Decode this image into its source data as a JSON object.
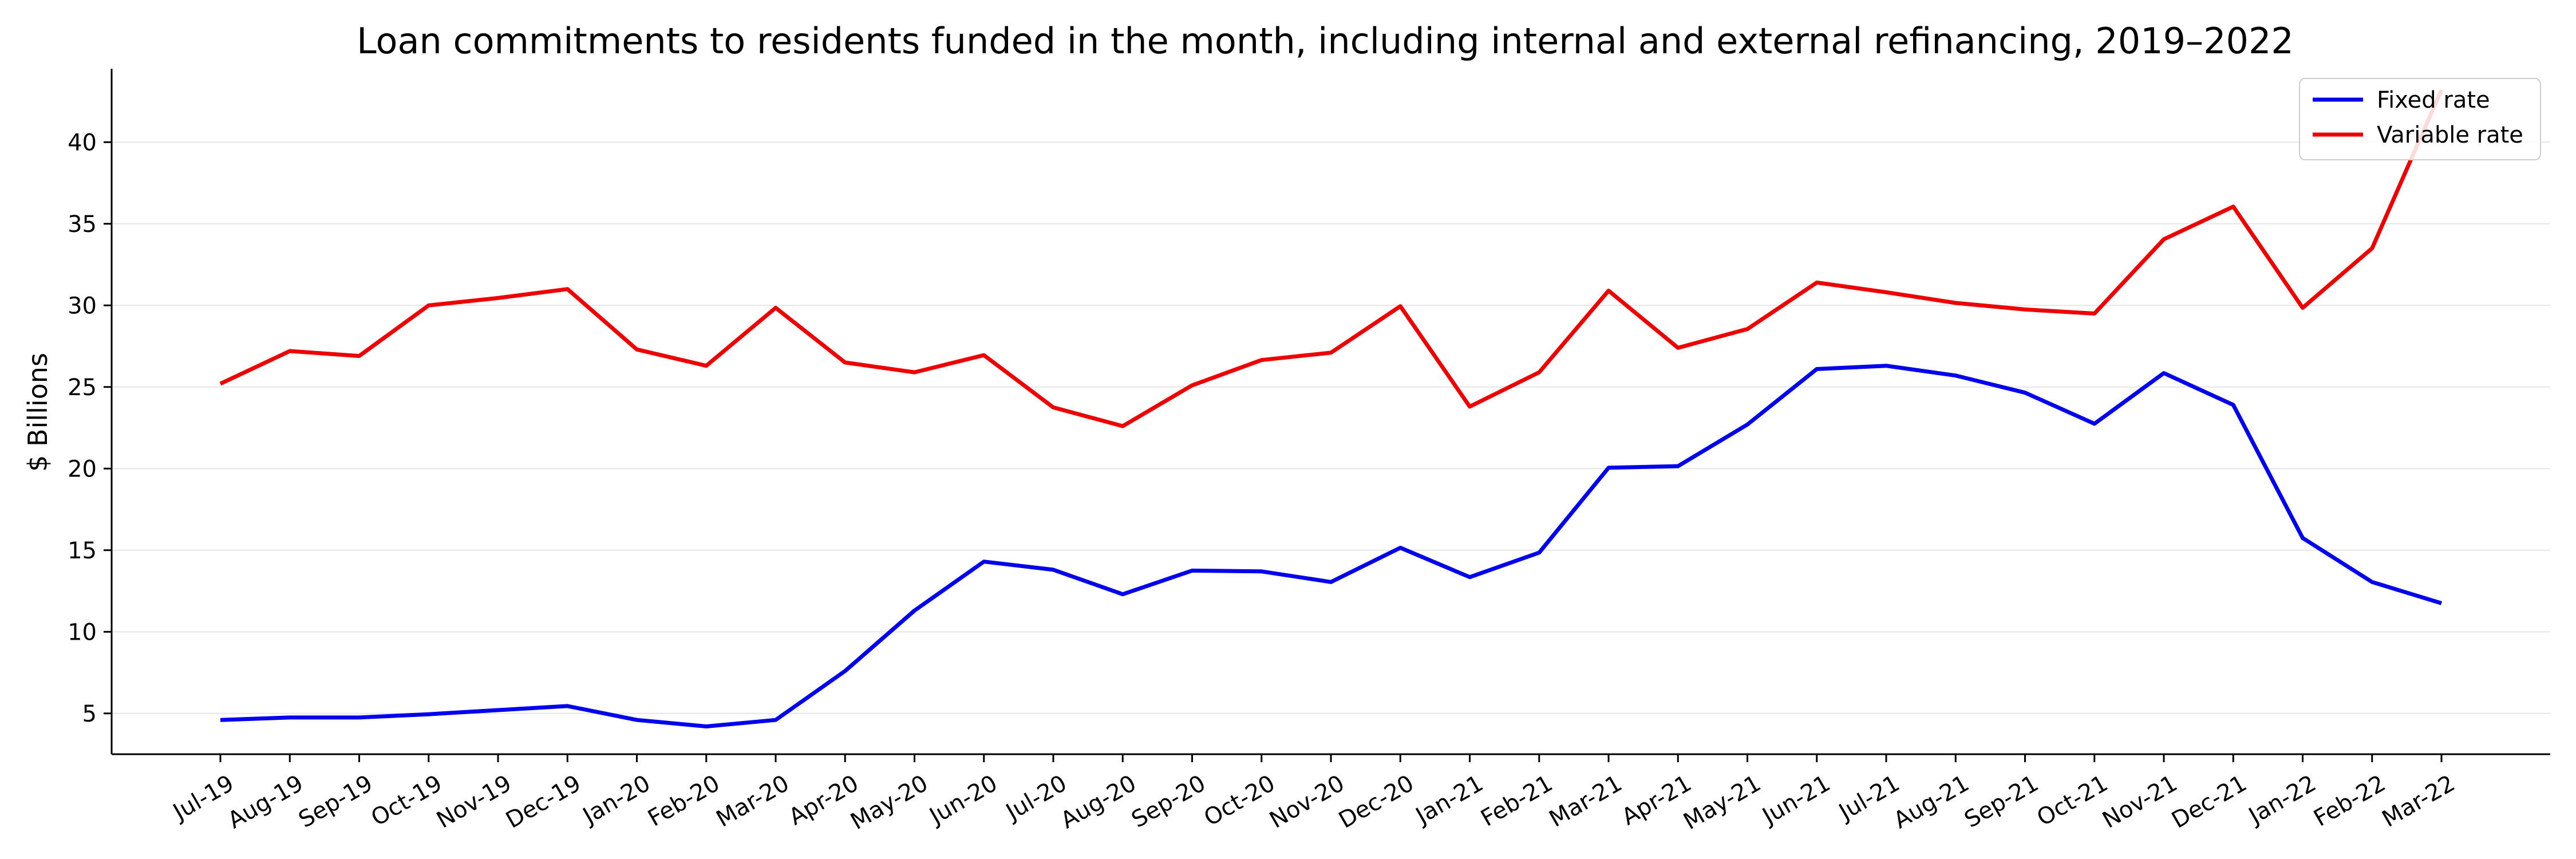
{
  "chart_data": {
    "type": "line",
    "title": "Loan commitments to residents funded in the month, including internal and external refinancing, 2019–2022",
    "xlabel": "",
    "ylabel": "$ Billions",
    "categories": [
      "Jul-19",
      "Aug-19",
      "Sep-19",
      "Oct-19",
      "Nov-19",
      "Dec-19",
      "Jan-20",
      "Feb-20",
      "Mar-20",
      "Apr-20",
      "May-20",
      "Jun-20",
      "Jul-20",
      "Aug-20",
      "Sep-20",
      "Oct-20",
      "Nov-20",
      "Dec-20",
      "Jan-21",
      "Feb-21",
      "Mar-21",
      "Apr-21",
      "May-21",
      "Jun-21",
      "Jul-21",
      "Aug-21",
      "Sep-21",
      "Oct-21",
      "Nov-21",
      "Dec-21",
      "Jan-22",
      "Feb-22",
      "Mar-22"
    ],
    "ylim": [
      2.5,
      44.5
    ],
    "yticks": [
      5,
      10,
      15,
      20,
      25,
      30,
      35,
      40
    ],
    "grid": "horizontal",
    "legend_position": "top-right",
    "series": [
      {
        "name": "Fixed rate",
        "color": "#0000ee",
        "values": [
          4.6,
          4.75,
          4.75,
          4.95,
          5.2,
          5.45,
          4.6,
          4.2,
          4.6,
          7.6,
          11.3,
          14.3,
          13.8,
          12.3,
          13.75,
          13.7,
          13.05,
          15.15,
          13.35,
          14.85,
          20.05,
          20.15,
          22.7,
          26.1,
          26.3,
          25.7,
          24.65,
          22.75,
          25.85,
          23.9,
          15.75,
          13.05,
          11.75
        ]
      },
      {
        "name": "Variable rate",
        "color": "#ee0000",
        "values": [
          25.2,
          27.2,
          26.9,
          30.0,
          30.45,
          31.0,
          27.3,
          26.3,
          29.85,
          26.5,
          25.9,
          26.95,
          23.75,
          22.6,
          25.1,
          26.65,
          27.1,
          29.95,
          23.8,
          25.9,
          30.9,
          27.4,
          28.55,
          31.4,
          30.8,
          30.15,
          29.75,
          29.5,
          34.05,
          36.05,
          29.85,
          33.5,
          43.2
        ]
      }
    ]
  }
}
